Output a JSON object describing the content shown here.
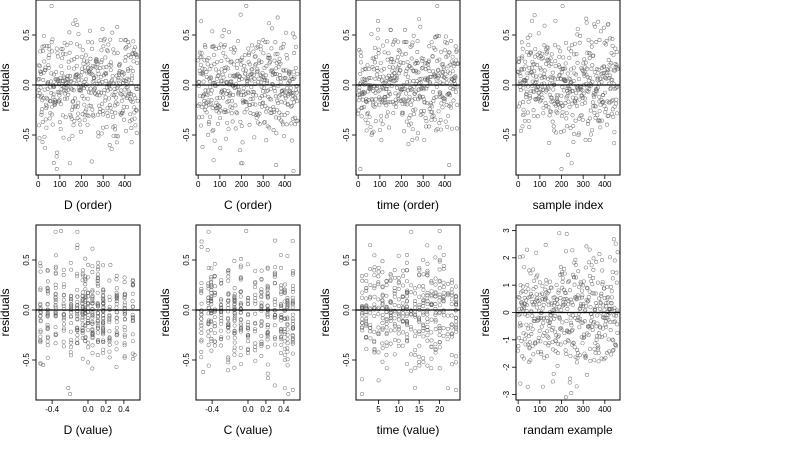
{
  "chart_data": [
    {
      "type": "scatter",
      "xlabel": "D (order)",
      "ylabel": "residuals",
      "xlim": [
        -10,
        470
      ],
      "ylim": [
        -0.9,
        0.85
      ],
      "xticks": [
        0,
        100,
        200,
        300,
        400
      ],
      "xtick_labels": [
        "0",
        "100",
        "200",
        "300",
        "400"
      ],
      "yticks": [
        -0.5,
        0.0,
        0.5
      ],
      "ytick_labels": [
        "-0.5",
        "0.0",
        "0.5"
      ],
      "hline": 0,
      "grid": false,
      "x_kind": "index",
      "n": 460,
      "sd": 0.25,
      "points": [
        [
          62,
          0.79
        ],
        [
          86,
          -0.84
        ],
        [
          72,
          -0.78
        ],
        [
          180,
          0.6
        ],
        [
          405,
          0.45
        ],
        [
          415,
          0.43
        ],
        [
          430,
          -0.43
        ],
        [
          455,
          -0.48
        ],
        [
          20,
          -0.57
        ],
        [
          330,
          -0.6
        ]
      ]
    },
    {
      "type": "scatter",
      "xlabel": "C (order)",
      "ylabel": "residuals",
      "xlim": [
        -10,
        470
      ],
      "ylim": [
        -0.9,
        0.85
      ],
      "xticks": [
        0,
        100,
        200,
        300,
        400
      ],
      "xtick_labels": [
        "0",
        "100",
        "200",
        "300",
        "400"
      ],
      "yticks": [
        -0.5,
        0.0,
        0.5
      ],
      "ytick_labels": [
        "-0.5",
        "0.0",
        "0.5"
      ],
      "hline": 0,
      "grid": false,
      "x_kind": "index",
      "n": 460,
      "sd": 0.25,
      "points": [
        [
          222,
          0.79
        ],
        [
          360,
          -0.8
        ],
        [
          440,
          -0.86
        ],
        [
          20,
          -0.62
        ],
        [
          120,
          0.55
        ],
        [
          300,
          0.45
        ]
      ]
    },
    {
      "type": "scatter",
      "xlabel": "time (order)",
      "ylabel": "residuals",
      "xlim": [
        -10,
        470
      ],
      "ylim": [
        -0.9,
        0.85
      ],
      "xticks": [
        0,
        100,
        200,
        300,
        400
      ],
      "xtick_labels": [
        "0",
        "100",
        "200",
        "300",
        "400"
      ],
      "yticks": [
        -0.5,
        0.0,
        0.5
      ],
      "ytick_labels": [
        "-0.5",
        "0.0",
        "0.5"
      ],
      "hline": 0,
      "grid": false,
      "x_kind": "index",
      "n": 460,
      "sd": 0.25,
      "points": [
        [
          365,
          0.79
        ],
        [
          10,
          -0.84
        ],
        [
          420,
          -0.8
        ],
        [
          150,
          0.55
        ],
        [
          250,
          -0.55
        ]
      ]
    },
    {
      "type": "scatter",
      "xlabel": "sample index",
      "ylabel": "residuals",
      "xlim": [
        -10,
        470
      ],
      "ylim": [
        -0.9,
        0.85
      ],
      "xticks": [
        0,
        100,
        200,
        300,
        400
      ],
      "xtick_labels": [
        "0",
        "100",
        "200",
        "300",
        "400"
      ],
      "yticks": [
        -0.5,
        0.0,
        0.5
      ],
      "ytick_labels": [
        "-0.5",
        "0.0",
        "0.5"
      ],
      "hline": 0,
      "grid": false,
      "x_kind": "index",
      "n": 460,
      "sd": 0.25,
      "points": [
        [
          205,
          0.79
        ],
        [
          200,
          -0.84
        ],
        [
          230,
          -0.7
        ],
        [
          375,
          0.45
        ],
        [
          360,
          0.43
        ],
        [
          330,
          -0.55
        ]
      ]
    },
    {
      "type": "scatter",
      "xlabel": "D (value)",
      "ylabel": "residuals",
      "xlim": [
        -0.58,
        0.58
      ],
      "ylim": [
        -0.9,
        0.85
      ],
      "xticks": [
        -0.4,
        0.0,
        0.2,
        0.4
      ],
      "xtick_labels": [
        "-0.4",
        "0.0",
        "0.2",
        "0.4"
      ],
      "yticks": [
        -0.5,
        0.0,
        0.5
      ],
      "ytick_labels": [
        "-0.5",
        "0.0",
        "0.5"
      ],
      "hline": 0,
      "grid": false,
      "x_kind": "clustered",
      "n": 420,
      "sd": 0.25,
      "x_levels": [
        -0.53,
        -0.45,
        -0.36,
        -0.27,
        -0.19,
        -0.12,
        -0.06,
        -0.03,
        0.0,
        0.05,
        0.11,
        0.17,
        0.24,
        0.32,
        0.41,
        0.5
      ],
      "points": [
        [
          -0.3,
          0.79
        ],
        [
          -0.2,
          -0.84
        ],
        [
          -0.22,
          -0.78
        ],
        [
          0.25,
          0.45
        ],
        [
          0.52,
          -0.45
        ],
        [
          -0.5,
          -0.55
        ]
      ]
    },
    {
      "type": "scatter",
      "xlabel": "C (value)",
      "ylabel": "residuals",
      "xlim": [
        -0.58,
        0.58
      ],
      "ylim": [
        -0.9,
        0.85
      ],
      "xticks": [
        -0.4,
        0.0,
        0.2,
        0.4
      ],
      "xtick_labels": [
        "-0.4",
        "0.0",
        "0.2",
        "0.4"
      ],
      "yticks": [
        -0.5,
        0.0,
        0.5
      ],
      "ytick_labels": [
        "-0.5",
        "0.0",
        "0.5"
      ],
      "hline": 0,
      "grid": false,
      "x_kind": "clustered",
      "n": 420,
      "sd": 0.25,
      "x_levels": [
        -0.52,
        -0.44,
        -0.41,
        -0.37,
        -0.3,
        -0.22,
        -0.15,
        -0.08,
        0.0,
        0.08,
        0.15,
        0.22,
        0.3,
        0.37,
        0.41,
        0.44,
        0.5
      ],
      "points": [
        [
          -0.02,
          0.79
        ],
        [
          0.45,
          -0.84
        ],
        [
          0.5,
          -0.8
        ],
        [
          -0.5,
          -0.62
        ],
        [
          -0.45,
          0.6
        ]
      ]
    },
    {
      "type": "scatter",
      "xlabel": "time (value)",
      "ylabel": "residuals",
      "xlim": [
        -0.5,
        25
      ],
      "ylim": [
        -0.9,
        0.85
      ],
      "xticks": [
        5,
        10,
        15,
        20
      ],
      "xtick_labels": [
        "5",
        "10",
        "15",
        "20"
      ],
      "yticks": [
        -0.5,
        0.0,
        0.5
      ],
      "ytick_labels": [
        "-0.5",
        "0.0",
        "0.5"
      ],
      "hline": 0,
      "grid": false,
      "x_kind": "clustered",
      "n": 420,
      "sd": 0.25,
      "x_levels": [
        1,
        2,
        3,
        4,
        5,
        6,
        7,
        8,
        9,
        10,
        11,
        12,
        13,
        14,
        15,
        16,
        17,
        18,
        19,
        20,
        21,
        22,
        23,
        24
      ],
      "points": [
        [
          20,
          0.79
        ],
        [
          1,
          -0.84
        ],
        [
          24,
          -0.8
        ],
        [
          12,
          0.55
        ]
      ]
    },
    {
      "type": "scatter",
      "xlabel": "randam example",
      "ylabel": "residuals",
      "xlim": [
        -10,
        470
      ],
      "ylim": [
        -3.2,
        3.2
      ],
      "xticks": [
        0,
        100,
        200,
        300,
        400
      ],
      "xtick_labels": [
        "0",
        "100",
        "200",
        "300",
        "400"
      ],
      "yticks": [
        -3,
        -2,
        -1,
        0,
        1,
        2,
        3
      ],
      "ytick_labels": [
        "-3",
        "-2",
        "-1",
        "0",
        "1",
        "2",
        "3"
      ],
      "hline": 0,
      "grid": false,
      "x_kind": "index",
      "n": 460,
      "sd": 1.0,
      "points": [
        [
          190,
          2.9
        ],
        [
          10,
          -2.6
        ],
        [
          270,
          -2.7
        ],
        [
          220,
          -3.1
        ],
        [
          330,
          2.3
        ]
      ]
    }
  ]
}
